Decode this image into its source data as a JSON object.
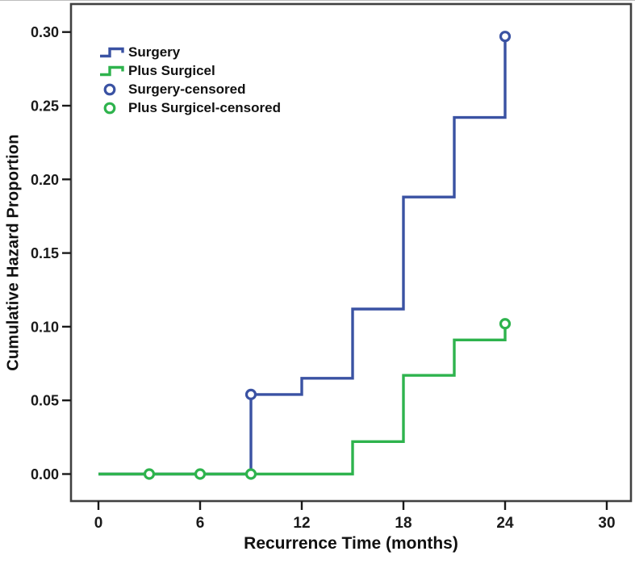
{
  "chart_data": {
    "type": "line",
    "subtype": "step-cumulative-hazard",
    "title": "",
    "xlabel": "Recurrence Time (months)",
    "ylabel": "Cumulative Hazard Proportion",
    "xlim": [
      -1.6,
      31.4
    ],
    "ylim": [
      -0.018,
      0.319
    ],
    "xticks": [
      0,
      6,
      12,
      18,
      24,
      30
    ],
    "ytick_labels": [
      "0.00",
      "0.05",
      "0.10",
      "0.15",
      "0.20",
      "0.25",
      "0.30"
    ],
    "grid": false,
    "legend_position": "top-left",
    "frame_color": "#404040",
    "tick_color": "#1a1a1a",
    "background_color": "#ffffff",
    "series": [
      {
        "name": "Surgery",
        "color": "#3a52a3",
        "points": [
          [
            0,
            0
          ],
          [
            9,
            0
          ],
          [
            9,
            0.054
          ],
          [
            12,
            0.054
          ],
          [
            12,
            0.065
          ],
          [
            15,
            0.065
          ],
          [
            15,
            0.112
          ],
          [
            18,
            0.112
          ],
          [
            18,
            0.188
          ],
          [
            21,
            0.188
          ],
          [
            21,
            0.242
          ],
          [
            24,
            0.242
          ],
          [
            24,
            0.297
          ]
        ],
        "censored": [
          [
            9,
            0.054
          ],
          [
            24,
            0.297
          ]
        ],
        "censored_label": "Surgery-censored"
      },
      {
        "name": "Plus Surgicel",
        "color": "#2eb34d",
        "points": [
          [
            0,
            0
          ],
          [
            15,
            0
          ],
          [
            15,
            0.022
          ],
          [
            18,
            0.022
          ],
          [
            18,
            0.067
          ],
          [
            21,
            0.067
          ],
          [
            21,
            0.091
          ],
          [
            24,
            0.091
          ],
          [
            24,
            0.102
          ]
        ],
        "censored": [
          [
            3,
            0
          ],
          [
            6,
            0
          ],
          [
            9,
            0
          ],
          [
            24,
            0.102
          ]
        ],
        "censored_label": "Plus Surgicel-censored"
      }
    ]
  }
}
